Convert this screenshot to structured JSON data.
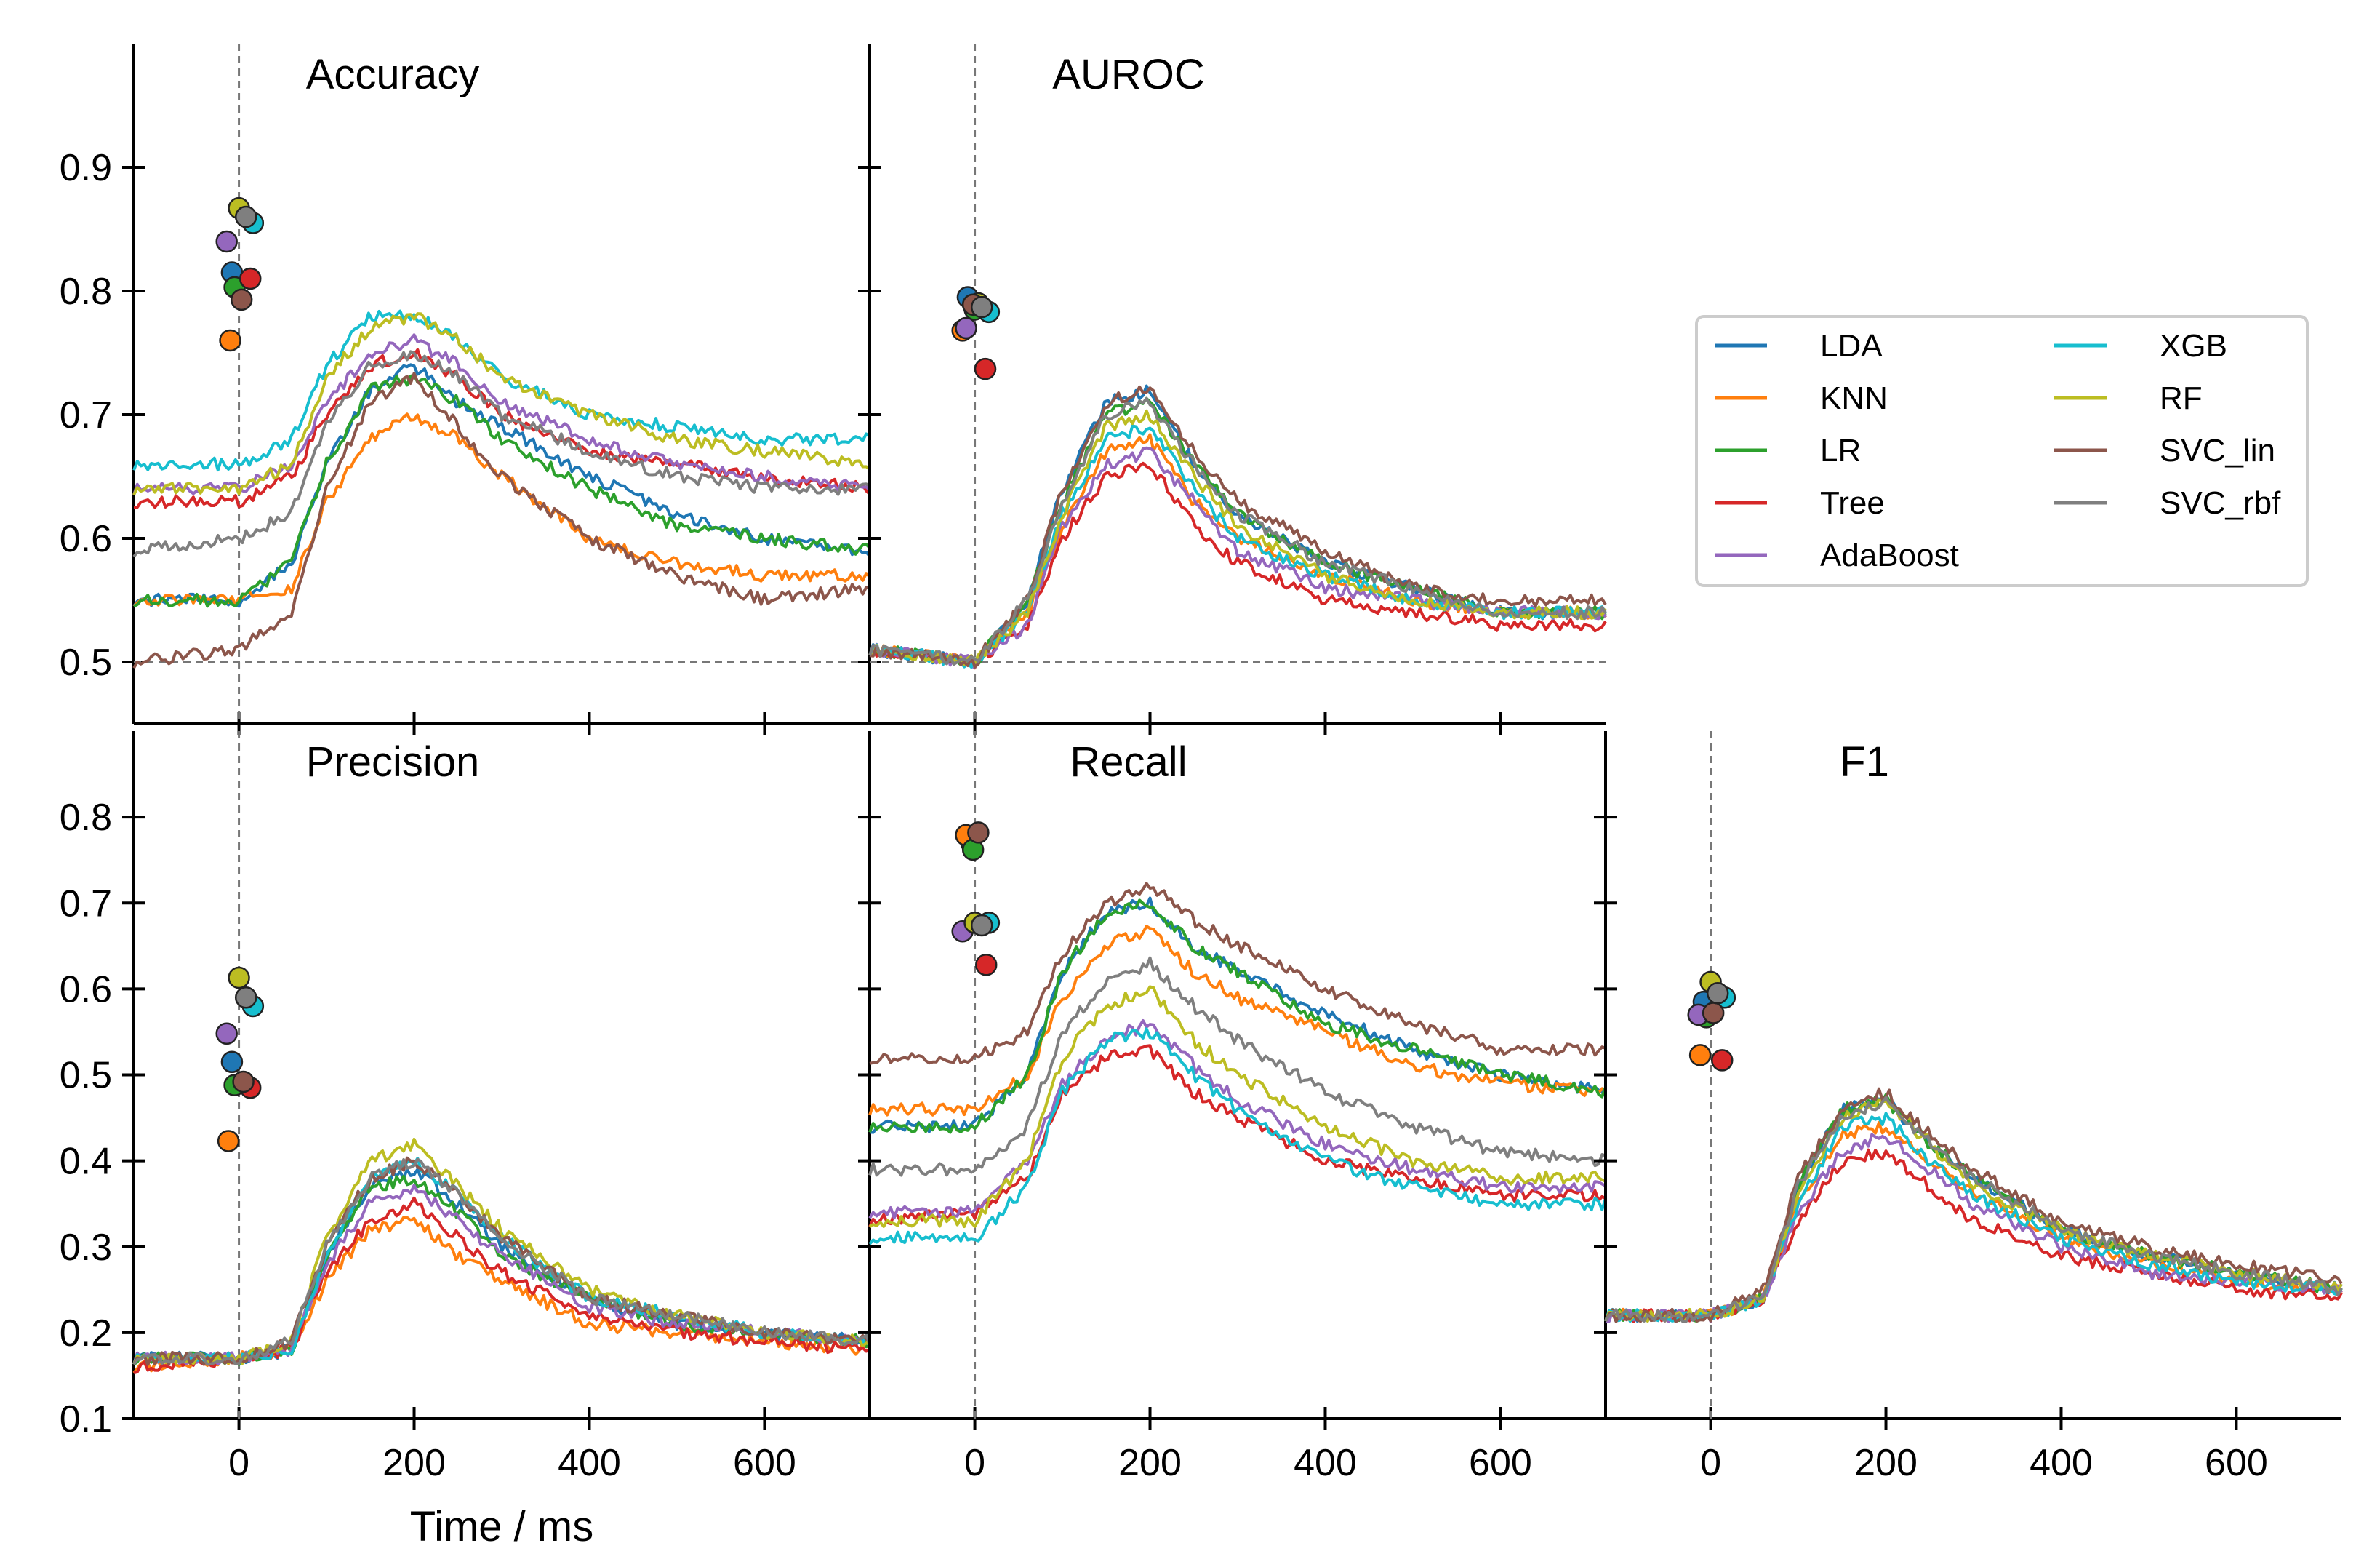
{
  "chart_data": {
    "type": "line",
    "xlabel": "Time / ms",
    "x_range": [
      -120,
      720
    ],
    "x_ticks": [
      0,
      200,
      400,
      600
    ],
    "stimulus_onset_ms": 0,
    "chance_level_accuracy_auroc": 0.5,
    "legend_location": "right of top row",
    "classifiers": [
      {
        "name": "LDA",
        "color": "#1f77b4"
      },
      {
        "name": "KNN",
        "color": "#ff7f0e"
      },
      {
        "name": "LR",
        "color": "#2ca02c"
      },
      {
        "name": "Tree",
        "color": "#d62728"
      },
      {
        "name": "AdaBoost",
        "color": "#9467bd"
      },
      {
        "name": "XGB",
        "color": "#17becf"
      },
      {
        "name": "RF",
        "color": "#bcbd22"
      },
      {
        "name": "SVC_lin",
        "color": "#8c564b"
      },
      {
        "name": "SVC_rbf",
        "color": "#7f7f7f"
      }
    ],
    "time_points_ms": [
      -120,
      0,
      60,
      100,
      150,
      200,
      250,
      300,
      400,
      500,
      600,
      720
    ],
    "panels": [
      {
        "title": "Accuracy",
        "ylim": [
          0.45,
          1.0
        ],
        "y_ticks": [
          0.5,
          0.6,
          0.7,
          0.8,
          0.9
        ],
        "y_tick_labels": [
          "0.5",
          "0.6",
          "0.7",
          "0.8",
          "0.9"
        ],
        "series": {
          "LDA": [
            0.55,
            0.55,
            0.58,
            0.66,
            0.72,
            0.74,
            0.71,
            0.69,
            0.65,
            0.62,
            0.6,
            0.59
          ],
          "KNN": [
            0.55,
            0.55,
            0.56,
            0.63,
            0.68,
            0.7,
            0.68,
            0.65,
            0.6,
            0.58,
            0.57,
            0.57
          ],
          "LR": [
            0.55,
            0.55,
            0.58,
            0.66,
            0.72,
            0.73,
            0.71,
            0.68,
            0.64,
            0.61,
            0.6,
            0.59
          ],
          "Tree": [
            0.63,
            0.63,
            0.65,
            0.7,
            0.74,
            0.75,
            0.73,
            0.7,
            0.67,
            0.66,
            0.65,
            0.64
          ],
          "AdaBoost": [
            0.64,
            0.64,
            0.66,
            0.71,
            0.75,
            0.76,
            0.74,
            0.71,
            0.68,
            0.66,
            0.65,
            0.64
          ],
          "XGB": [
            0.66,
            0.66,
            0.68,
            0.74,
            0.78,
            0.78,
            0.76,
            0.73,
            0.7,
            0.69,
            0.68,
            0.68
          ],
          "RF": [
            0.64,
            0.64,
            0.66,
            0.73,
            0.77,
            0.78,
            0.76,
            0.73,
            0.7,
            0.68,
            0.67,
            0.66
          ],
          "SVC_lin": [
            0.5,
            0.51,
            0.54,
            0.64,
            0.71,
            0.73,
            0.69,
            0.65,
            0.6,
            0.57,
            0.55,
            0.56
          ],
          "SVC_rbf": [
            0.59,
            0.6,
            0.62,
            0.69,
            0.74,
            0.75,
            0.73,
            0.7,
            0.67,
            0.65,
            0.64,
            0.64
          ]
        },
        "scatter": [
          {
            "name": "LDA",
            "x": -8,
            "y": 0.815
          },
          {
            "name": "KNN",
            "x": -10,
            "y": 0.76
          },
          {
            "name": "LR",
            "x": -5,
            "y": 0.803
          },
          {
            "name": "Tree",
            "x": 13,
            "y": 0.81
          },
          {
            "name": "AdaBoost",
            "x": -14,
            "y": 0.84
          },
          {
            "name": "XGB",
            "x": 16,
            "y": 0.855
          },
          {
            "name": "RF",
            "x": 0,
            "y": 0.867
          },
          {
            "name": "SVC_lin",
            "x": 3,
            "y": 0.793
          },
          {
            "name": "SVC_rbf",
            "x": 8,
            "y": 0.86
          }
        ],
        "chance_line": 0.5
      },
      {
        "title": "AUROC",
        "ylim": [
          0.45,
          1.0
        ],
        "y_ticks": [
          0.5,
          0.6,
          0.7,
          0.8,
          0.9
        ],
        "y_tick_labels": [],
        "series": {
          "LDA": [
            0.51,
            0.5,
            0.55,
            0.64,
            0.71,
            0.72,
            0.66,
            0.62,
            0.58,
            0.56,
            0.54,
            0.54
          ],
          "KNN": [
            0.51,
            0.5,
            0.54,
            0.61,
            0.67,
            0.68,
            0.63,
            0.6,
            0.57,
            0.55,
            0.54,
            0.54
          ],
          "LR": [
            0.51,
            0.5,
            0.55,
            0.63,
            0.7,
            0.71,
            0.66,
            0.62,
            0.58,
            0.56,
            0.54,
            0.54
          ],
          "Tree": [
            0.51,
            0.5,
            0.53,
            0.6,
            0.65,
            0.66,
            0.61,
            0.58,
            0.55,
            0.54,
            0.53,
            0.53
          ],
          "AdaBoost": [
            0.51,
            0.5,
            0.53,
            0.61,
            0.66,
            0.67,
            0.63,
            0.59,
            0.56,
            0.55,
            0.54,
            0.54
          ],
          "XGB": [
            0.51,
            0.5,
            0.54,
            0.62,
            0.68,
            0.69,
            0.64,
            0.6,
            0.57,
            0.55,
            0.54,
            0.54
          ],
          "RF": [
            0.51,
            0.5,
            0.54,
            0.62,
            0.69,
            0.7,
            0.65,
            0.61,
            0.57,
            0.55,
            0.54,
            0.54
          ],
          "SVC_lin": [
            0.51,
            0.5,
            0.55,
            0.64,
            0.71,
            0.72,
            0.67,
            0.63,
            0.59,
            0.56,
            0.55,
            0.55
          ],
          "SVC_rbf": [
            0.51,
            0.5,
            0.55,
            0.63,
            0.7,
            0.71,
            0.66,
            0.62,
            0.58,
            0.56,
            0.54,
            0.54
          ]
        },
        "scatter": [
          {
            "name": "LDA",
            "x": -8,
            "y": 0.795
          },
          {
            "name": "KNN",
            "x": -14,
            "y": 0.768
          },
          {
            "name": "LR",
            "x": 0,
            "y": 0.785
          },
          {
            "name": "Tree",
            "x": 12,
            "y": 0.737
          },
          {
            "name": "AdaBoost",
            "x": -10,
            "y": 0.77
          },
          {
            "name": "XGB",
            "x": 16,
            "y": 0.783
          },
          {
            "name": "RF",
            "x": 4,
            "y": 0.79
          },
          {
            "name": "SVC_lin",
            "x": -2,
            "y": 0.789
          },
          {
            "name": "SVC_rbf",
            "x": 8,
            "y": 0.787
          }
        ],
        "chance_line": 0.5
      },
      {
        "title": "Precision",
        "ylim": [
          0.1,
          0.9
        ],
        "y_ticks": [
          0.1,
          0.2,
          0.3,
          0.4,
          0.5,
          0.6,
          0.7,
          0.8
        ],
        "y_tick_labels": [
          "0.1",
          "0.2",
          "0.3",
          "0.4",
          "0.5",
          "0.6",
          "0.7",
          "0.8"
        ],
        "series": {
          "LDA": [
            0.17,
            0.17,
            0.18,
            0.29,
            0.37,
            0.39,
            0.35,
            0.3,
            0.24,
            0.21,
            0.2,
            0.19
          ],
          "KNN": [
            0.16,
            0.17,
            0.18,
            0.26,
            0.32,
            0.33,
            0.29,
            0.26,
            0.21,
            0.2,
            0.19,
            0.18
          ],
          "LR": [
            0.17,
            0.17,
            0.18,
            0.29,
            0.37,
            0.38,
            0.34,
            0.29,
            0.24,
            0.21,
            0.2,
            0.19
          ],
          "Tree": [
            0.16,
            0.17,
            0.18,
            0.27,
            0.33,
            0.35,
            0.31,
            0.27,
            0.22,
            0.2,
            0.19,
            0.18
          ],
          "AdaBoost": [
            0.17,
            0.17,
            0.18,
            0.28,
            0.35,
            0.37,
            0.33,
            0.29,
            0.23,
            0.21,
            0.2,
            0.19
          ],
          "XGB": [
            0.17,
            0.17,
            0.18,
            0.29,
            0.38,
            0.4,
            0.36,
            0.31,
            0.24,
            0.22,
            0.2,
            0.19
          ],
          "RF": [
            0.17,
            0.17,
            0.19,
            0.31,
            0.4,
            0.42,
            0.37,
            0.32,
            0.25,
            0.22,
            0.2,
            0.19
          ],
          "SVC_lin": [
            0.17,
            0.17,
            0.19,
            0.3,
            0.38,
            0.4,
            0.36,
            0.31,
            0.24,
            0.22,
            0.2,
            0.19
          ],
          "SVC_rbf": [
            0.17,
            0.17,
            0.19,
            0.3,
            0.38,
            0.4,
            0.36,
            0.31,
            0.24,
            0.22,
            0.2,
            0.19
          ]
        },
        "scatter": [
          {
            "name": "LDA",
            "x": -8,
            "y": 0.515
          },
          {
            "name": "KNN",
            "x": -12,
            "y": 0.423
          },
          {
            "name": "LR",
            "x": -5,
            "y": 0.488
          },
          {
            "name": "Tree",
            "x": 13,
            "y": 0.485
          },
          {
            "name": "AdaBoost",
            "x": -14,
            "y": 0.548
          },
          {
            "name": "XGB",
            "x": 16,
            "y": 0.58
          },
          {
            "name": "RF",
            "x": 0,
            "y": 0.613
          },
          {
            "name": "SVC_lin",
            "x": 5,
            "y": 0.492
          },
          {
            "name": "SVC_rbf",
            "x": 8,
            "y": 0.59
          }
        ]
      },
      {
        "title": "Recall",
        "ylim": [
          0.1,
          0.9
        ],
        "y_ticks": [
          0.1,
          0.2,
          0.3,
          0.4,
          0.5,
          0.6,
          0.7,
          0.8
        ],
        "y_tick_labels": [],
        "series": {
          "LDA": [
            0.44,
            0.44,
            0.5,
            0.62,
            0.69,
            0.7,
            0.65,
            0.62,
            0.57,
            0.53,
            0.5,
            0.48
          ],
          "KNN": [
            0.46,
            0.46,
            0.5,
            0.59,
            0.65,
            0.67,
            0.62,
            0.59,
            0.55,
            0.51,
            0.49,
            0.48
          ],
          "LR": [
            0.44,
            0.44,
            0.5,
            0.62,
            0.69,
            0.7,
            0.65,
            0.62,
            0.56,
            0.53,
            0.5,
            0.48
          ],
          "Tree": [
            0.33,
            0.34,
            0.38,
            0.48,
            0.52,
            0.53,
            0.48,
            0.45,
            0.4,
            0.38,
            0.36,
            0.36
          ],
          "AdaBoost": [
            0.34,
            0.34,
            0.4,
            0.49,
            0.54,
            0.56,
            0.51,
            0.47,
            0.42,
            0.39,
            0.37,
            0.37
          ],
          "XGB": [
            0.31,
            0.31,
            0.37,
            0.48,
            0.54,
            0.55,
            0.5,
            0.46,
            0.4,
            0.37,
            0.35,
            0.35
          ],
          "RF": [
            0.33,
            0.33,
            0.4,
            0.52,
            0.58,
            0.6,
            0.54,
            0.5,
            0.44,
            0.4,
            0.38,
            0.38
          ],
          "SVC_lin": [
            0.52,
            0.52,
            0.55,
            0.64,
            0.7,
            0.72,
            0.68,
            0.65,
            0.6,
            0.56,
            0.53,
            0.53
          ],
          "SVC_rbf": [
            0.39,
            0.39,
            0.44,
            0.55,
            0.61,
            0.63,
            0.58,
            0.54,
            0.48,
            0.44,
            0.41,
            0.4
          ]
        },
        "scatter": [
          {
            "name": "LDA",
            "x": -4,
            "y": 0.77
          },
          {
            "name": "KNN",
            "x": -10,
            "y": 0.779
          },
          {
            "name": "LR",
            "x": -2,
            "y": 0.762
          },
          {
            "name": "Tree",
            "x": 13,
            "y": 0.628
          },
          {
            "name": "AdaBoost",
            "x": -14,
            "y": 0.667
          },
          {
            "name": "XGB",
            "x": 16,
            "y": 0.677
          },
          {
            "name": "RF",
            "x": 0,
            "y": 0.677
          },
          {
            "name": "SVC_lin",
            "x": 4,
            "y": 0.782
          },
          {
            "name": "SVC_rbf",
            "x": 8,
            "y": 0.674
          }
        ]
      },
      {
        "title": "F1",
        "ylim": [
          0.1,
          0.9
        ],
        "y_ticks": [
          0.1,
          0.2,
          0.3,
          0.4,
          0.5,
          0.6,
          0.7,
          0.8
        ],
        "y_tick_labels": [],
        "series": {
          "LDA": [
            0.22,
            0.22,
            0.24,
            0.37,
            0.46,
            0.47,
            0.42,
            0.38,
            0.32,
            0.29,
            0.27,
            0.25
          ],
          "KNN": [
            0.22,
            0.22,
            0.24,
            0.35,
            0.43,
            0.44,
            0.4,
            0.36,
            0.31,
            0.28,
            0.26,
            0.25
          ],
          "LR": [
            0.22,
            0.22,
            0.24,
            0.37,
            0.46,
            0.47,
            0.42,
            0.38,
            0.32,
            0.29,
            0.27,
            0.25
          ],
          "Tree": [
            0.22,
            0.22,
            0.24,
            0.33,
            0.4,
            0.41,
            0.37,
            0.33,
            0.29,
            0.27,
            0.25,
            0.24
          ],
          "AdaBoost": [
            0.22,
            0.22,
            0.24,
            0.34,
            0.41,
            0.43,
            0.39,
            0.35,
            0.3,
            0.27,
            0.26,
            0.25
          ],
          "XGB": [
            0.22,
            0.22,
            0.24,
            0.35,
            0.44,
            0.45,
            0.4,
            0.36,
            0.31,
            0.28,
            0.26,
            0.25
          ],
          "RF": [
            0.22,
            0.22,
            0.24,
            0.36,
            0.45,
            0.47,
            0.42,
            0.37,
            0.32,
            0.29,
            0.27,
            0.25
          ],
          "SVC_lin": [
            0.22,
            0.22,
            0.25,
            0.38,
            0.46,
            0.48,
            0.43,
            0.39,
            0.33,
            0.3,
            0.28,
            0.26
          ],
          "SVC_rbf": [
            0.22,
            0.22,
            0.24,
            0.37,
            0.45,
            0.47,
            0.42,
            0.38,
            0.32,
            0.29,
            0.27,
            0.25
          ]
        },
        "scatter": [
          {
            "name": "LDA",
            "x": -8,
            "y": 0.585
          },
          {
            "name": "KNN",
            "x": -12,
            "y": 0.523
          },
          {
            "name": "LR",
            "x": -5,
            "y": 0.567
          },
          {
            "name": "Tree",
            "x": 13,
            "y": 0.517
          },
          {
            "name": "AdaBoost",
            "x": -14,
            "y": 0.57
          },
          {
            "name": "XGB",
            "x": 16,
            "y": 0.59
          },
          {
            "name": "RF",
            "x": 0,
            "y": 0.608
          },
          {
            "name": "SVC_lin",
            "x": 3,
            "y": 0.572
          },
          {
            "name": "SVC_rbf",
            "x": 8,
            "y": 0.595
          }
        ]
      }
    ]
  }
}
